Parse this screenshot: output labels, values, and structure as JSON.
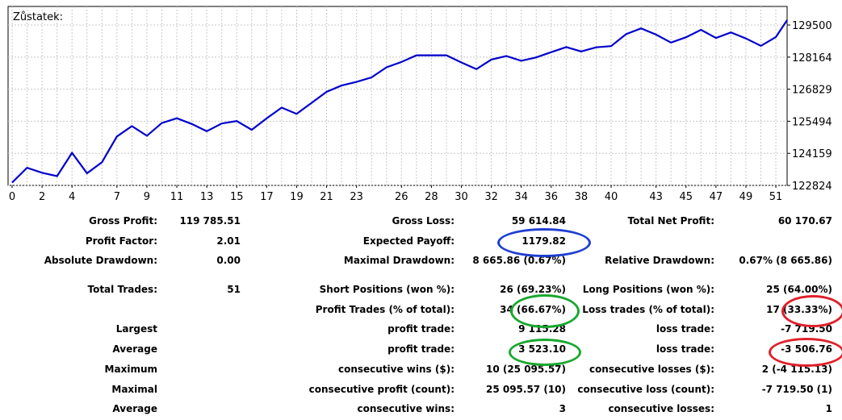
{
  "chart_data": {
    "type": "line",
    "title": "Zůstatek:",
    "xlabel": "",
    "ylabel": "",
    "x_ticks": [
      0,
      2,
      4,
      7,
      9,
      11,
      13,
      15,
      17,
      19,
      21,
      23,
      26,
      28,
      30,
      32,
      34,
      36,
      38,
      40,
      43,
      45,
      47,
      49,
      51
    ],
    "y_ticks": [
      "129500",
      "128164",
      "126829",
      "125494",
      "124159",
      "122824"
    ],
    "xlim": [
      0,
      51.5
    ],
    "ylim": [
      122824,
      129500
    ],
    "grid": true,
    "series": [
      {
        "name": "",
        "color": "#0000cc",
        "x": [
          0,
          1,
          2,
          3,
          4,
          5,
          6,
          7,
          8,
          9,
          10,
          11,
          12,
          13,
          14,
          15,
          16,
          17,
          18,
          19,
          20,
          21,
          22,
          23,
          24,
          25,
          26,
          27,
          28,
          29,
          30,
          31,
          32,
          33,
          34,
          35,
          36,
          37,
          38,
          39,
          40,
          41,
          42,
          43,
          44,
          45,
          46,
          47,
          48,
          49,
          50,
          51,
          52
        ],
        "y": [
          122940,
          123560,
          123350,
          123210,
          124180,
          123330,
          123790,
          124860,
          125290,
          124890,
          125420,
          125620,
          125380,
          125080,
          125400,
          125500,
          125140,
          125620,
          126060,
          125800,
          126260,
          126720,
          126980,
          127130,
          127320,
          127740,
          127960,
          128240,
          128240,
          128240,
          127940,
          127660,
          128060,
          128210,
          128010,
          128150,
          128370,
          128580,
          128400,
          128570,
          128620,
          129120,
          129360,
          129100,
          128770,
          128990,
          129300,
          128960,
          129190,
          128940,
          128630,
          129000,
          129700
        ]
      }
    ]
  },
  "stats": {
    "row1": {
      "l1": "Gross Profit:",
      "v1": "119 785.51",
      "l2": "Gross Loss:",
      "v2": "59 614.84",
      "l3": "Total Net Profit:",
      "v3": "60 170.67"
    },
    "row2": {
      "l1": "Profit Factor:",
      "v1": "2.01",
      "l2": "Expected Payoff:",
      "v2": "1179.82"
    },
    "row3": {
      "l1": "Absolute Drawdown:",
      "v1": "0.00",
      "l2": "Maximal Drawdown:",
      "v2": "8 665.86 (0.67%)",
      "l3": "Relative Drawdown:",
      "v3": "0.67% (8 665.86)"
    },
    "row4": {
      "l1": "Total Trades:",
      "v1": "51",
      "l2": "Short Positions (won %):",
      "v2": "26 (69.23%)",
      "l3": "Long Positions (won %):",
      "v3": "25 (64.00%)"
    },
    "row5": {
      "l2": "Profit Trades (% of total):",
      "v2": "34 (66.67%)",
      "l3": "Loss trades (% of total):",
      "v3": "17 (33.33%)"
    },
    "row6": {
      "l1": "Largest",
      "l2": "profit trade:",
      "v2": "9 115.28",
      "l3": "loss trade:",
      "v3": "-7 719.50"
    },
    "row7": {
      "l1": "Average",
      "l2": "profit trade:",
      "v2": "3 523.10",
      "l3": "loss trade:",
      "v3": "-3 506.76"
    },
    "row8": {
      "l1": "Maximum",
      "l2": "consecutive wins ($):",
      "v2": "10 (25 095.57)",
      "l3": "consecutive losses ($):",
      "v3": "2 (-4 115.13)"
    },
    "row9": {
      "l1": "Maximal",
      "l2": "consecutive profit (count):",
      "v2": "25 095.57 (10)",
      "l3": "consecutive loss (count):",
      "v3": "-7 719.50 (1)"
    },
    "row10": {
      "l1": "Average",
      "l2": "consecutive wins:",
      "v2": "3",
      "l3": "consecutive losses:",
      "v3": "1"
    }
  },
  "annotations": {
    "blue": "#1f3fd0",
    "green": "#1aa830",
    "red": "#e0202a"
  }
}
